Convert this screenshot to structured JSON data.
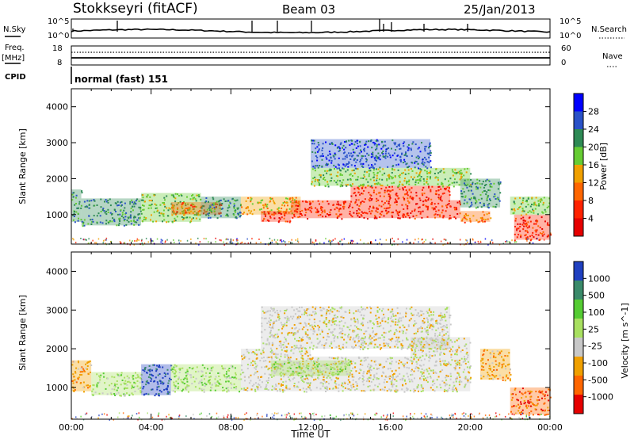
{
  "header": {
    "station": "Stokkseyri (fitACF)",
    "beam": "Beam 03",
    "date": "25/Jan/2013"
  },
  "nsky_panel": {
    "label": "N.Sky",
    "right_label": "N.Search",
    "left_ticks": [
      "10^5",
      "10^0"
    ],
    "right_ticks": [
      "10^5",
      "10^0"
    ]
  },
  "freq_panel": {
    "label_line1": "Freq.",
    "label_line2": "[MHz]",
    "right_label": "Nave",
    "left_ticks": [
      "18",
      "8"
    ],
    "right_ticks": [
      "60",
      "0"
    ]
  },
  "cpid_panel": {
    "label": "CPID",
    "mode_text": "normal (fast) 151"
  },
  "chart_data": [
    {
      "type": "heatmap",
      "title": "",
      "ylabel": "Slant Range [km]",
      "yticks": [
        "1000",
        "2000",
        "3000",
        "4000"
      ],
      "ylim": [
        180,
        4500
      ],
      "xlim_hours": [
        0,
        24
      ],
      "xticks": [
        "00:00",
        "04:00",
        "08:00",
        "12:00",
        "16:00",
        "20:00",
        "00:00"
      ],
      "colorbar": {
        "label": "Power [dB]",
        "ticks": [
          "4",
          "8",
          "12",
          "16",
          "20",
          "24",
          "28"
        ],
        "colors": [
          "#0000ff",
          "#2a52c8",
          "#2e8a55",
          "#66cc33",
          "#f0a000",
          "#ff6600",
          "#ff2200",
          "#e60000"
        ]
      },
      "regions": [
        {
          "t0": 0.0,
          "t1": 0.5,
          "r0": 800,
          "r1": 1700,
          "level": 2
        },
        {
          "t0": 0.5,
          "t1": 3.5,
          "r0": 700,
          "r1": 1450,
          "level": 2
        },
        {
          "t0": 3.5,
          "t1": 6.5,
          "r0": 800,
          "r1": 1600,
          "level": 3
        },
        {
          "t0": 5.0,
          "t1": 7.5,
          "r0": 1000,
          "r1": 1350,
          "level": 5
        },
        {
          "t0": 6.5,
          "t1": 8.5,
          "r0": 900,
          "r1": 1500,
          "level": 2
        },
        {
          "t0": 8.5,
          "t1": 11.5,
          "r0": 1000,
          "r1": 1500,
          "level": 4
        },
        {
          "t0": 9.5,
          "t1": 11.0,
          "r0": 800,
          "r1": 1100,
          "level": 6
        },
        {
          "t0": 11.0,
          "t1": 19.5,
          "r0": 900,
          "r1": 1400,
          "level": 6
        },
        {
          "t0": 14.0,
          "t1": 19.0,
          "r0": 1400,
          "r1": 1800,
          "level": 6
        },
        {
          "t0": 12.0,
          "t1": 20.0,
          "r0": 1800,
          "r1": 2300,
          "level": 3
        },
        {
          "t0": 12.0,
          "t1": 18.0,
          "r0": 2300,
          "r1": 3100,
          "level": 1
        },
        {
          "t0": 19.5,
          "t1": 21.5,
          "r0": 1200,
          "r1": 2000,
          "level": 2
        },
        {
          "t0": 19.5,
          "t1": 21.0,
          "r0": 800,
          "r1": 1100,
          "level": 5
        },
        {
          "t0": 22.2,
          "t1": 24.0,
          "r0": 300,
          "r1": 1000,
          "level": 6
        },
        {
          "t0": 22.0,
          "t1": 24.0,
          "r0": 1000,
          "r1": 1500,
          "level": 3
        }
      ]
    },
    {
      "type": "heatmap",
      "title": "",
      "ylabel": "Slant Range [km]",
      "yticks": [
        "1000",
        "2000",
        "3000",
        "4000"
      ],
      "ylim": [
        180,
        4500
      ],
      "xlim_hours": [
        0,
        24
      ],
      "xticks": [
        "00:00",
        "04:00",
        "08:00",
        "12:00",
        "16:00",
        "20:00",
        "00:00"
      ],
      "xlabel": "Time UT",
      "colorbar": {
        "label": "Velocity [m s^-1]",
        "ticks": [
          "1000",
          "500",
          "100",
          "25",
          "-25",
          "-100",
          "-500",
          "-1000"
        ],
        "colors": [
          "#2040c0",
          "#3a8a6a",
          "#55cc33",
          "#a8e060",
          "#c8c8c8",
          "#f0a000",
          "#ff6600",
          "#e60000"
        ]
      },
      "regions": [
        {
          "t0": 0.0,
          "t1": 1.0,
          "r0": 900,
          "r1": 1700,
          "level": 5
        },
        {
          "t0": 1.0,
          "t1": 3.5,
          "r0": 800,
          "r1": 1400,
          "level": 3
        },
        {
          "t0": 3.5,
          "t1": 5.0,
          "r0": 800,
          "r1": 1600,
          "level": 0
        },
        {
          "t0": 5.0,
          "t1": 8.5,
          "r0": 900,
          "r1": 1600,
          "level": 3
        },
        {
          "t0": 8.5,
          "t1": 12.0,
          "r0": 900,
          "r1": 2000,
          "level": 4
        },
        {
          "t0": 12.0,
          "t1": 17.0,
          "r0": 900,
          "r1": 1800,
          "level": 4
        },
        {
          "t0": 10.0,
          "t1": 14.0,
          "r0": 1300,
          "r1": 1700,
          "level": 3
        },
        {
          "t0": 17.0,
          "t1": 20.0,
          "r0": 900,
          "r1": 2300,
          "level": 4
        },
        {
          "t0": 9.5,
          "t1": 19.0,
          "r0": 2000,
          "r1": 3100,
          "level": 4
        },
        {
          "t0": 22.0,
          "t1": 24.0,
          "r0": 300,
          "r1": 1000,
          "level": 6
        },
        {
          "t0": 20.5,
          "t1": 22.0,
          "r0": 1200,
          "r1": 2000,
          "level": 5
        }
      ]
    }
  ]
}
